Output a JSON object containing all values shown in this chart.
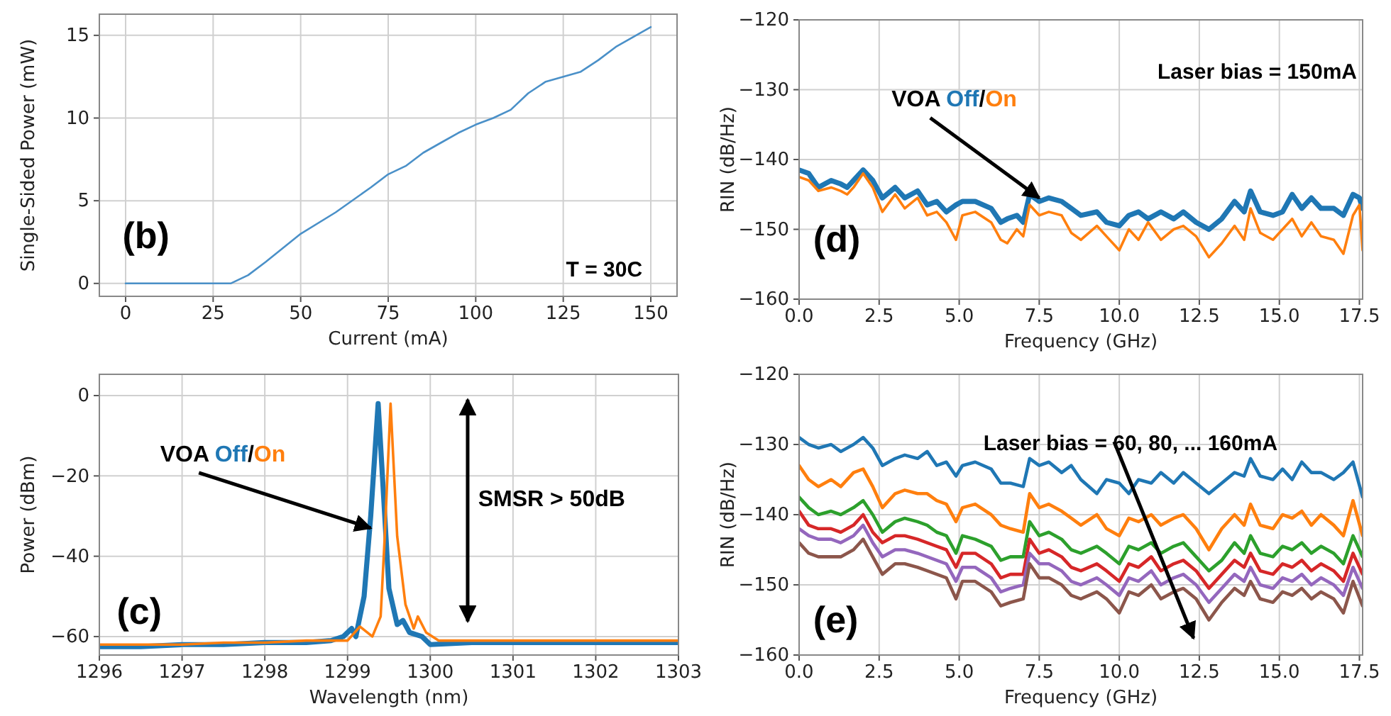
{
  "chart_data": [
    {
      "type": "line",
      "xlabel": "Current (mA)",
      "ylabel": "Single-Sided Power (mW)",
      "xlim": [
        -7.5,
        157.5
      ],
      "ylim": [
        -0.78,
        16.28
      ],
      "xticks": [
        0,
        25,
        50,
        75,
        100,
        125,
        150
      ],
      "yticks": [
        0,
        5,
        10,
        15
      ],
      "grid": true,
      "annotations": [
        "(b)",
        "T = 30C"
      ],
      "series": [
        {
          "color": "#4a90c8",
          "x": [
            0,
            30,
            35,
            40,
            50,
            60,
            70,
            75,
            80,
            85,
            90,
            95,
            100,
            105,
            110,
            115,
            120,
            125,
            130,
            135,
            140,
            145,
            150
          ],
          "values": [
            0,
            0,
            0.5,
            1.3,
            3,
            4.3,
            5.8,
            6.6,
            7.1,
            7.9,
            8.5,
            9.1,
            9.6,
            10,
            10.5,
            11.5,
            12.2,
            12.5,
            12.8,
            13.5,
            14.3,
            14.9,
            15.5
          ]
        }
      ]
    },
    {
      "type": "line",
      "xlabel": "Frequency (GHz)",
      "ylabel": "RIN (dB/Hz)",
      "xlim": [
        0,
        17.6
      ],
      "ylim": [
        -160,
        -120
      ],
      "xticks": [
        {
          "value": 0,
          "label": "0.0"
        },
        2.5,
        {
          "value": 5,
          "label": "5.0"
        },
        7.5,
        {
          "value": 10,
          "label": "10.0"
        },
        12.5,
        {
          "value": 15,
          "label": "15.0"
        },
        17.5
      ],
      "yticks": [
        {
          "value": -160,
          "label": "−160"
        },
        {
          "value": -150,
          "label": "−150"
        },
        {
          "value": -140,
          "label": "−140"
        },
        {
          "value": -130,
          "label": "−130"
        },
        {
          "value": -120,
          "label": "−120"
        }
      ],
      "grid": true,
      "annotations": [
        {
          "text": "VOA",
          "x": 7.5,
          "y": -145.5
        },
        "/",
        "Laser bias = 150mA",
        "(d)"
      ],
      "x": [
        0,
        0.3,
        0.6,
        1,
        1.3,
        1.5,
        1.7,
        2,
        2.3,
        2.6,
        3,
        3.3,
        3.7,
        4,
        4.3,
        4.6,
        4.9,
        5.1,
        5.5,
        6,
        6.3,
        6.5,
        6.8,
        7,
        7.2,
        7.5,
        7.8,
        8.2,
        8.5,
        8.8,
        9.3,
        9.6,
        10,
        10.3,
        10.6,
        10.9,
        11.3,
        11.7,
        12,
        12.4,
        12.8,
        13.2,
        13.6,
        13.9,
        14.1,
        14.4,
        14.8,
        15.1,
        15.4,
        15.7,
        16,
        16.3,
        16.7,
        17,
        17.3,
        17.5,
        17.6
      ],
      "series": [
        {
          "name": "Off",
          "color": "#1f77b4",
          "values": [
            -141.5,
            -142,
            -144,
            -143,
            -143.5,
            -144,
            -143,
            -141.5,
            -143,
            -145.5,
            -144,
            -145.5,
            -144.5,
            -146.5,
            -146,
            -147.5,
            -146.5,
            -146,
            -146,
            -147,
            -149,
            -148.5,
            -148,
            -149,
            -145,
            -146,
            -145.5,
            -146,
            -147,
            -148,
            -147.5,
            -149,
            -149.5,
            -148,
            -147.5,
            -148.5,
            -147.5,
            -148.5,
            -147.5,
            -149,
            -150,
            -148.5,
            -146,
            -147.5,
            -144.5,
            -147.5,
            -148,
            -147.5,
            -145,
            -147,
            -145.5,
            -147,
            -147,
            -148,
            -145,
            -145.5,
            -147
          ]
        },
        {
          "name": "On",
          "color": "#ff7f0e",
          "values": [
            -142.5,
            -143,
            -144.5,
            -144,
            -144.5,
            -145,
            -144,
            -142,
            -144,
            -147.5,
            -145,
            -147,
            -145.5,
            -148,
            -147.5,
            -149,
            -151.5,
            -148,
            -147.5,
            -149,
            -151.5,
            -152,
            -150,
            -151,
            -146.5,
            -148,
            -147.5,
            -148,
            -150.5,
            -151.5,
            -149.5,
            -151,
            -153,
            -150,
            -151.5,
            -149,
            -151.5,
            -150,
            -149.5,
            -151,
            -154,
            -152,
            -149.5,
            -151.5,
            -147,
            -150.5,
            -151.5,
            -150,
            -148.5,
            -151,
            -149,
            -151,
            -151.5,
            -153.5,
            -148,
            -146.5,
            -153
          ]
        }
      ]
    },
    {
      "type": "line",
      "xlabel": "Wavelength (nm)",
      "ylabel": "Power (dBm)",
      "xlim": [
        1296,
        1303
      ],
      "ylim": [
        -64.6,
        5.3
      ],
      "xticks": [
        1296,
        1297,
        1298,
        1299,
        1300,
        1301,
        1302,
        1303
      ],
      "yticks": [
        {
          "value": -60,
          "label": "−60"
        },
        {
          "value": -40,
          "label": "−40"
        },
        {
          "value": -20,
          "label": "−20"
        },
        0
      ],
      "grid": true,
      "annotations": [
        {
          "text": "VOA",
          "x": 1299.28,
          "y": -33
        },
        "/",
        "SMSR > 50dB",
        "(c)"
      ],
      "series": [
        {
          "name": "Off",
          "color": "#1f77b4",
          "x": [
            1296,
            1296.5,
            1297,
            1297.5,
            1298,
            1298.5,
            1298.8,
            1298.95,
            1299.05,
            1299.1,
            1299.2,
            1299.28,
            1299.37,
            1299.45,
            1299.5,
            1299.6,
            1299.67,
            1299.75,
            1299.9,
            1300,
            1300.5,
            1301,
            1302,
            1303
          ],
          "values": [
            -62.5,
            -62.5,
            -62,
            -62,
            -61.5,
            -61.5,
            -61,
            -60,
            -58,
            -60,
            -50,
            -30,
            -2,
            -30,
            -48,
            -57,
            -56,
            -59,
            -60,
            -62,
            -61.5,
            -61.5,
            -61.5,
            -61.5
          ]
        },
        {
          "name": "On",
          "color": "#ff7f0e",
          "x": [
            1296,
            1296.5,
            1297,
            1297.5,
            1298,
            1298.5,
            1298.8,
            1299,
            1299.15,
            1299.3,
            1299.4,
            1299.45,
            1299.52,
            1299.6,
            1299.7,
            1299.8,
            1299.85,
            1299.95,
            1300.1,
            1300.5,
            1301,
            1302,
            1303
          ],
          "values": [
            -62,
            -62,
            -62,
            -61.5,
            -61.5,
            -61,
            -61,
            -61,
            -57.5,
            -60,
            -55,
            -35,
            -2,
            -35,
            -52,
            -58,
            -55,
            -59,
            -61,
            -61,
            -61,
            -61,
            -61
          ]
        }
      ]
    },
    {
      "type": "line",
      "xlabel": "Frequency (GHz)",
      "ylabel": "RIN (dB/Hz)",
      "xlim": [
        0,
        17.6
      ],
      "ylim": [
        -160,
        -120
      ],
      "xticks": [
        {
          "value": 0,
          "label": "0.0"
        },
        2.5,
        {
          "value": 5,
          "label": "5.0"
        },
        7.5,
        {
          "value": 10,
          "label": "10.0"
        },
        12.5,
        {
          "value": 15,
          "label": "15.0"
        },
        17.5
      ],
      "yticks": [
        {
          "value": -160,
          "label": "−160"
        },
        {
          "value": -150,
          "label": "−150"
        },
        {
          "value": -140,
          "label": "−140"
        },
        {
          "value": -130,
          "label": "−130"
        },
        {
          "value": -120,
          "label": "−120"
        }
      ],
      "grid": true,
      "annotations": [
        "Laser bias = 60, 80, ... 160mA",
        "(e)"
      ],
      "x": [
        0,
        0.3,
        0.6,
        1,
        1.3,
        1.7,
        2,
        2.3,
        2.6,
        3,
        3.3,
        3.7,
        4,
        4.3,
        4.6,
        4.9,
        5.1,
        5.5,
        6,
        6.3,
        6.6,
        7,
        7.2,
        7.5,
        7.8,
        8.2,
        8.5,
        8.8,
        9.3,
        9.6,
        10,
        10.3,
        10.6,
        11,
        11.3,
        11.7,
        12,
        12.4,
        12.8,
        13.2,
        13.6,
        13.9,
        14.1,
        14.4,
        14.8,
        15.1,
        15.4,
        15.7,
        16,
        16.3,
        16.7,
        17,
        17.3,
        17.6
      ],
      "series": [
        {
          "color": "#1f77b4",
          "values": [
            -129,
            -130,
            -130.5,
            -130,
            -131,
            -130,
            -129,
            -130.5,
            -133,
            -132,
            -131.5,
            -132,
            -131,
            -133,
            -132.5,
            -134.5,
            -133,
            -132.5,
            -133.5,
            -135.5,
            -135.5,
            -136,
            -132,
            -133,
            -132.5,
            -134,
            -133,
            -135,
            -137,
            -135,
            -135.5,
            -137,
            -135,
            -135.5,
            -134,
            -135.5,
            -134,
            -135.5,
            -137,
            -135.5,
            -134,
            -134.5,
            -132,
            -134.5,
            -135,
            -133.5,
            -135,
            -132.5,
            -134,
            -134,
            -135,
            -134,
            -132.5,
            -137.5
          ]
        },
        {
          "color": "#ff7f0e",
          "values": [
            -133,
            -135,
            -136,
            -135,
            -136,
            -134,
            -133.5,
            -136,
            -139,
            -137,
            -136.5,
            -137,
            -137,
            -138,
            -138.5,
            -141,
            -139,
            -138.5,
            -140,
            -141.5,
            -142,
            -142.5,
            -137,
            -139,
            -138.5,
            -139.5,
            -140.5,
            -141.5,
            -140,
            -142,
            -143,
            -140.5,
            -141,
            -140,
            -141.5,
            -140.5,
            -140,
            -142,
            -145,
            -142,
            -140,
            -141.5,
            -138.5,
            -141.5,
            -142,
            -140,
            -140.5,
            -139.5,
            -141.5,
            -140,
            -141.5,
            -143,
            -138,
            -143
          ]
        },
        {
          "color": "#2ca02c",
          "values": [
            -137.5,
            -139,
            -140,
            -139.5,
            -140,
            -139,
            -138,
            -140,
            -142.5,
            -141,
            -140.5,
            -141,
            -141.5,
            -142.5,
            -143,
            -145.5,
            -143,
            -143.5,
            -144.5,
            -146.5,
            -146,
            -146,
            -141,
            -143,
            -142.5,
            -143.5,
            -145,
            -145.5,
            -144.5,
            -145.5,
            -147,
            -144.5,
            -145,
            -144,
            -145.5,
            -144.5,
            -144,
            -146,
            -148,
            -146.5,
            -144,
            -145.5,
            -143,
            -145.5,
            -146,
            -144.5,
            -145,
            -144,
            -145.5,
            -144.5,
            -145.5,
            -147,
            -143,
            -146
          ]
        },
        {
          "color": "#d62728",
          "values": [
            -139.5,
            -141.5,
            -142,
            -142,
            -142.5,
            -141.5,
            -140,
            -142.5,
            -144,
            -143,
            -143,
            -143.5,
            -144,
            -144.5,
            -145,
            -147.5,
            -145.5,
            -145.5,
            -147,
            -149,
            -148.5,
            -148.5,
            -143.5,
            -145.5,
            -145,
            -146,
            -147.5,
            -148,
            -147,
            -148,
            -149.5,
            -147,
            -147.5,
            -146,
            -148,
            -147,
            -146.5,
            -148,
            -150.5,
            -148.5,
            -146.5,
            -147.5,
            -145.5,
            -148,
            -148.5,
            -147,
            -147.5,
            -146.5,
            -148,
            -147,
            -148,
            -149.5,
            -145.5,
            -148.5
          ]
        },
        {
          "color": "#9467bd",
          "values": [
            -142,
            -143,
            -143.5,
            -143.5,
            -144,
            -143,
            -141.5,
            -144,
            -146,
            -145,
            -145,
            -145.5,
            -146,
            -146.5,
            -147,
            -149.5,
            -147.5,
            -147.5,
            -149,
            -151,
            -150.5,
            -150,
            -145.5,
            -147,
            -147,
            -148,
            -149.5,
            -150,
            -149,
            -150,
            -151.5,
            -149,
            -149.5,
            -148,
            -150,
            -149,
            -148.5,
            -150,
            -152.5,
            -150.5,
            -148.5,
            -149.5,
            -147.5,
            -150,
            -150.5,
            -149,
            -149.5,
            -148.5,
            -150,
            -149,
            -150,
            -151.5,
            -147.5,
            -150.5
          ]
        },
        {
          "color": "#8c564b",
          "values": [
            -144,
            -145.5,
            -146,
            -146,
            -146,
            -145,
            -143.5,
            -146,
            -148.5,
            -147,
            -147,
            -147.5,
            -148,
            -148.5,
            -149,
            -152,
            -149.5,
            -149.5,
            -151,
            -153,
            -152.5,
            -152,
            -147,
            -149,
            -149,
            -150,
            -151.5,
            -152,
            -151,
            -152,
            -154,
            -151,
            -151.5,
            -150,
            -152,
            -151,
            -150.5,
            -152,
            -155,
            -152.5,
            -150.5,
            -151.5,
            -149.5,
            -152,
            -152.5,
            -151,
            -151.5,
            -150.5,
            -152,
            -151,
            -152,
            -154,
            -149.5,
            -153
          ]
        }
      ]
    }
  ]
}
